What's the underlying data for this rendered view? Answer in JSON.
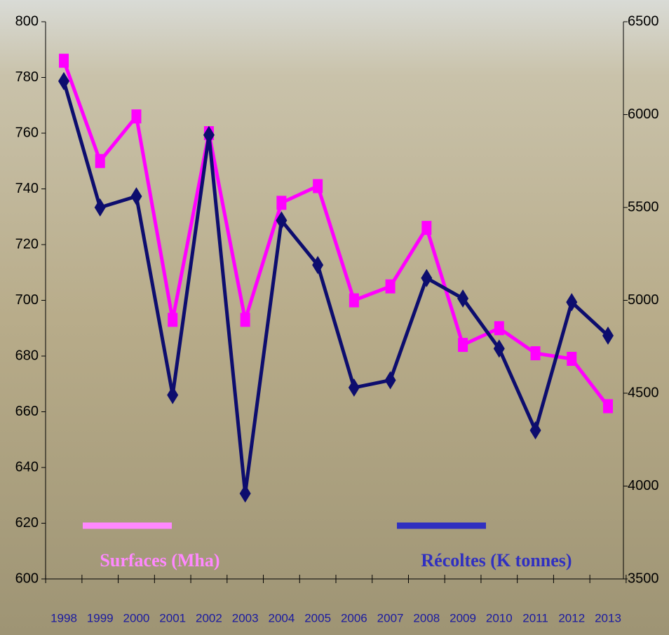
{
  "chart_data": {
    "type": "line",
    "categories": [
      "1998",
      "1999",
      "2000",
      "2001",
      "2002",
      "2003",
      "2004",
      "2005",
      "2006",
      "2007",
      "2008",
      "2009",
      "2010",
      "2011",
      "2012",
      "2013"
    ],
    "series": [
      {
        "name": "Surfaces (Mha)",
        "color": "#ff00ff",
        "legend_color": "#ff88ff",
        "marker": "square",
        "axis": "y",
        "values": [
          786,
          750,
          766,
          693,
          760,
          693,
          735,
          741,
          700,
          705,
          726,
          684,
          690,
          681,
          679,
          662
        ]
      },
      {
        "name": "Récoltes (K tonnes)",
        "color": "#0d0d6e",
        "legend_color": "#3030c0",
        "marker": "diamond",
        "axis": "y2",
        "values": [
          6180,
          5500,
          5560,
          4490,
          5890,
          3960,
          5430,
          5190,
          4530,
          4570,
          5120,
          5010,
          4740,
          4300,
          4990,
          4810
        ]
      }
    ],
    "ylim": [
      600,
      800
    ],
    "yticks": [
      600,
      620,
      640,
      660,
      680,
      700,
      720,
      740,
      760,
      780,
      800
    ],
    "y2lim": [
      3500,
      6500
    ],
    "y2ticks": [
      3500,
      4000,
      4500,
      5000,
      5500,
      6000,
      6500
    ]
  }
}
